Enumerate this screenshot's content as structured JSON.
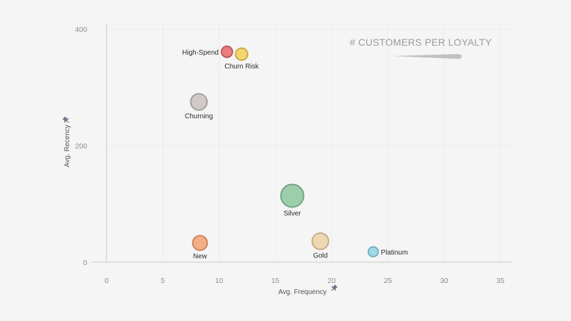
{
  "chart_data": {
    "type": "scatter",
    "xlabel": "Avg. Frequency",
    "ylabel": "Avg. Recency",
    "xlim": [
      0,
      35
    ],
    "ylim": [
      0,
      400
    ],
    "x_ticks": [
      0,
      5,
      10,
      15,
      20,
      25,
      30,
      35
    ],
    "y_ticks": [
      0,
      200,
      400
    ],
    "grid": true,
    "legend": {
      "title": "# CUSTOMERS PER LOYALTY",
      "placement": "top-right",
      "encoding": "size"
    },
    "points": [
      {
        "label": "High-Spend",
        "x": 10.7,
        "y": 361,
        "size": 2.0,
        "color": "#e8696b",
        "label_side": "left"
      },
      {
        "label": "Churn Risk",
        "x": 12.0,
        "y": 357,
        "size": 2.4,
        "color": "#f5cf56",
        "label_side": "below"
      },
      {
        "label": "Churning",
        "x": 8.2,
        "y": 275,
        "size": 4.4,
        "color": "#c9c1bd",
        "label_side": "below"
      },
      {
        "label": "Silver",
        "x": 16.5,
        "y": 114,
        "size": 8.5,
        "color": "#8cc79f",
        "label_side": "below"
      },
      {
        "label": "New",
        "x": 8.3,
        "y": 33,
        "size": 3.5,
        "color": "#f4a173",
        "label_side": "below"
      },
      {
        "label": "Gold",
        "x": 19.0,
        "y": 36,
        "size": 4.4,
        "color": "#ecd2a6",
        "label_side": "below"
      },
      {
        "label": "Platinum",
        "x": 23.7,
        "y": 18,
        "size": 1.6,
        "color": "#8fd5ea",
        "label_side": "right"
      }
    ]
  }
}
